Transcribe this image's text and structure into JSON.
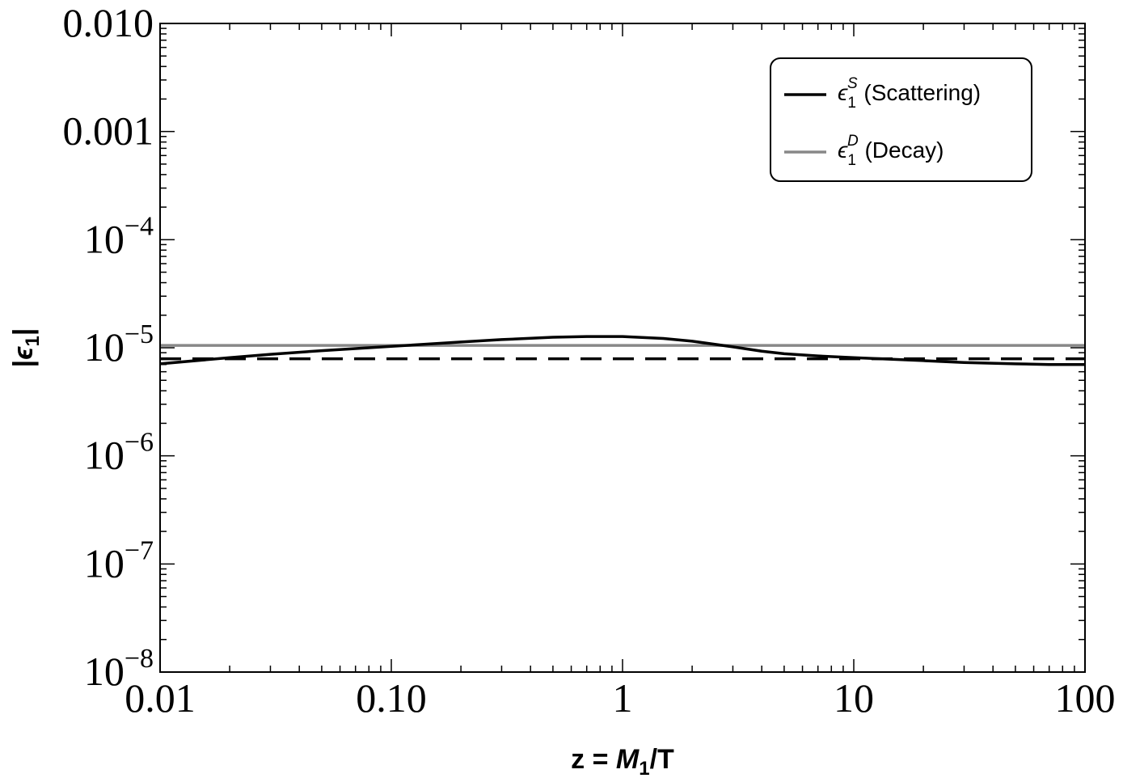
{
  "chart_data": {
    "type": "line",
    "xscale": "log",
    "yscale": "log",
    "xlim": [
      0.01,
      100
    ],
    "ylim": [
      1e-08,
      0.01
    ],
    "grid": false,
    "legend_position": "top-right",
    "xlabel": {
      "prefix": "z = ",
      "symbol": "M",
      "subscript": "1",
      "suffix": "/T"
    },
    "ylabel": {
      "open": "|",
      "symbol": "ϵ",
      "subscript": "1",
      "close": "|"
    },
    "x_tick_labels": [
      "0.01",
      "0.10",
      "1",
      "10",
      "100"
    ],
    "x_tick_values": [
      0.01,
      0.1,
      1,
      10,
      100
    ],
    "y_tick_labels": [
      {
        "value": 0.01,
        "text": "0.010"
      },
      {
        "value": 0.001,
        "text": "0.001"
      },
      {
        "value": 0.0001,
        "base": "10",
        "exp": "−4"
      },
      {
        "value": 1e-05,
        "base": "10",
        "exp": "−5"
      },
      {
        "value": 1e-06,
        "base": "10",
        "exp": "−6"
      },
      {
        "value": 1e-07,
        "base": "10",
        "exp": "−7"
      },
      {
        "value": 1e-08,
        "base": "10",
        "exp": "−8"
      }
    ],
    "series": [
      {
        "legend": {
          "symbol": "ϵ",
          "sub": "1",
          "sup": "S",
          "text": " (Scattering)"
        },
        "color": "#000000",
        "style": "solid",
        "x": [
          0.01,
          0.02,
          0.03,
          0.05,
          0.1,
          0.2,
          0.3,
          0.5,
          0.7,
          1,
          1.5,
          2,
          3,
          4,
          5,
          7,
          10,
          20,
          30,
          50,
          70,
          100
        ],
        "y": [
          7.1e-06,
          8.1e-06,
          8.7e-06,
          9.4e-06,
          1.03e-05,
          1.13e-05,
          1.19e-05,
          1.25e-05,
          1.27e-05,
          1.27e-05,
          1.22e-05,
          1.15e-05,
          1.02e-05,
          9.3e-06,
          8.8e-06,
          8.4e-06,
          8.1e-06,
          7.6e-06,
          7.3e-06,
          7.1e-06,
          7e-06,
          7e-06
        ]
      },
      {
        "legend": {
          "symbol": "ϵ",
          "sub": "1",
          "sup": "D",
          "text": " (Decay)"
        },
        "color": "#888888",
        "style": "solid",
        "x": [
          0.01,
          100
        ],
        "y": [
          1.05e-05,
          1.05e-05
        ]
      },
      {
        "color": "#000000",
        "style": "dashed",
        "x": [
          0.01,
          100
        ],
        "y": [
          7.9e-06,
          7.9e-06
        ]
      }
    ]
  }
}
